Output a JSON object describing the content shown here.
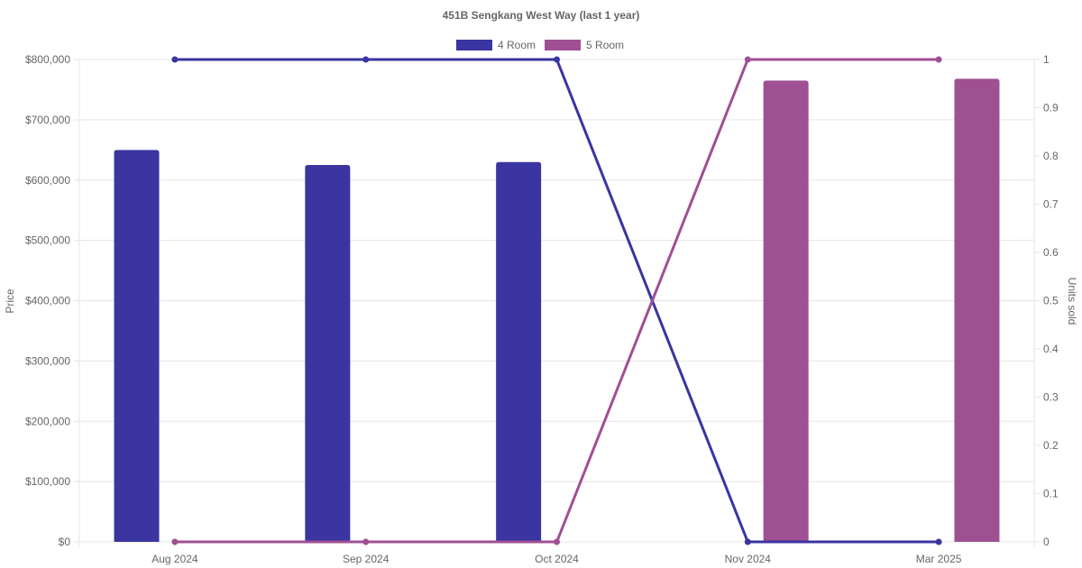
{
  "chart_data": {
    "type": "bar",
    "title": "451B Sengkang West Way (last 1 year)",
    "categories": [
      "Aug 2024",
      "Sep 2024",
      "Oct 2024",
      "Nov 2024",
      "Mar 2025"
    ],
    "ylabel": "Price",
    "y2label": "Units sold",
    "ylim": [
      0,
      800000
    ],
    "y2lim": [
      0,
      1
    ],
    "y_ticks": [
      "$0",
      "$100,000",
      "$200,000",
      "$300,000",
      "$400,000",
      "$500,000",
      "$600,000",
      "$700,000",
      "$800,000"
    ],
    "y2_ticks": [
      "0",
      "0.1",
      "0.2",
      "0.3",
      "0.4",
      "0.5",
      "0.6",
      "0.7",
      "0.8",
      "0.9",
      "1"
    ],
    "legend_position": "top-center",
    "grid": true,
    "series": [
      {
        "name": "4 Room",
        "color": "#3a35a0",
        "bar_values": [
          650000,
          625000,
          630000,
          null,
          null
        ],
        "units_sold": [
          1,
          1,
          1,
          0,
          0
        ]
      },
      {
        "name": "5 Room",
        "color": "#9f5093",
        "bar_values": [
          null,
          null,
          null,
          765000,
          768000
        ],
        "units_sold": [
          0,
          0,
          0,
          1,
          1
        ]
      }
    ]
  }
}
